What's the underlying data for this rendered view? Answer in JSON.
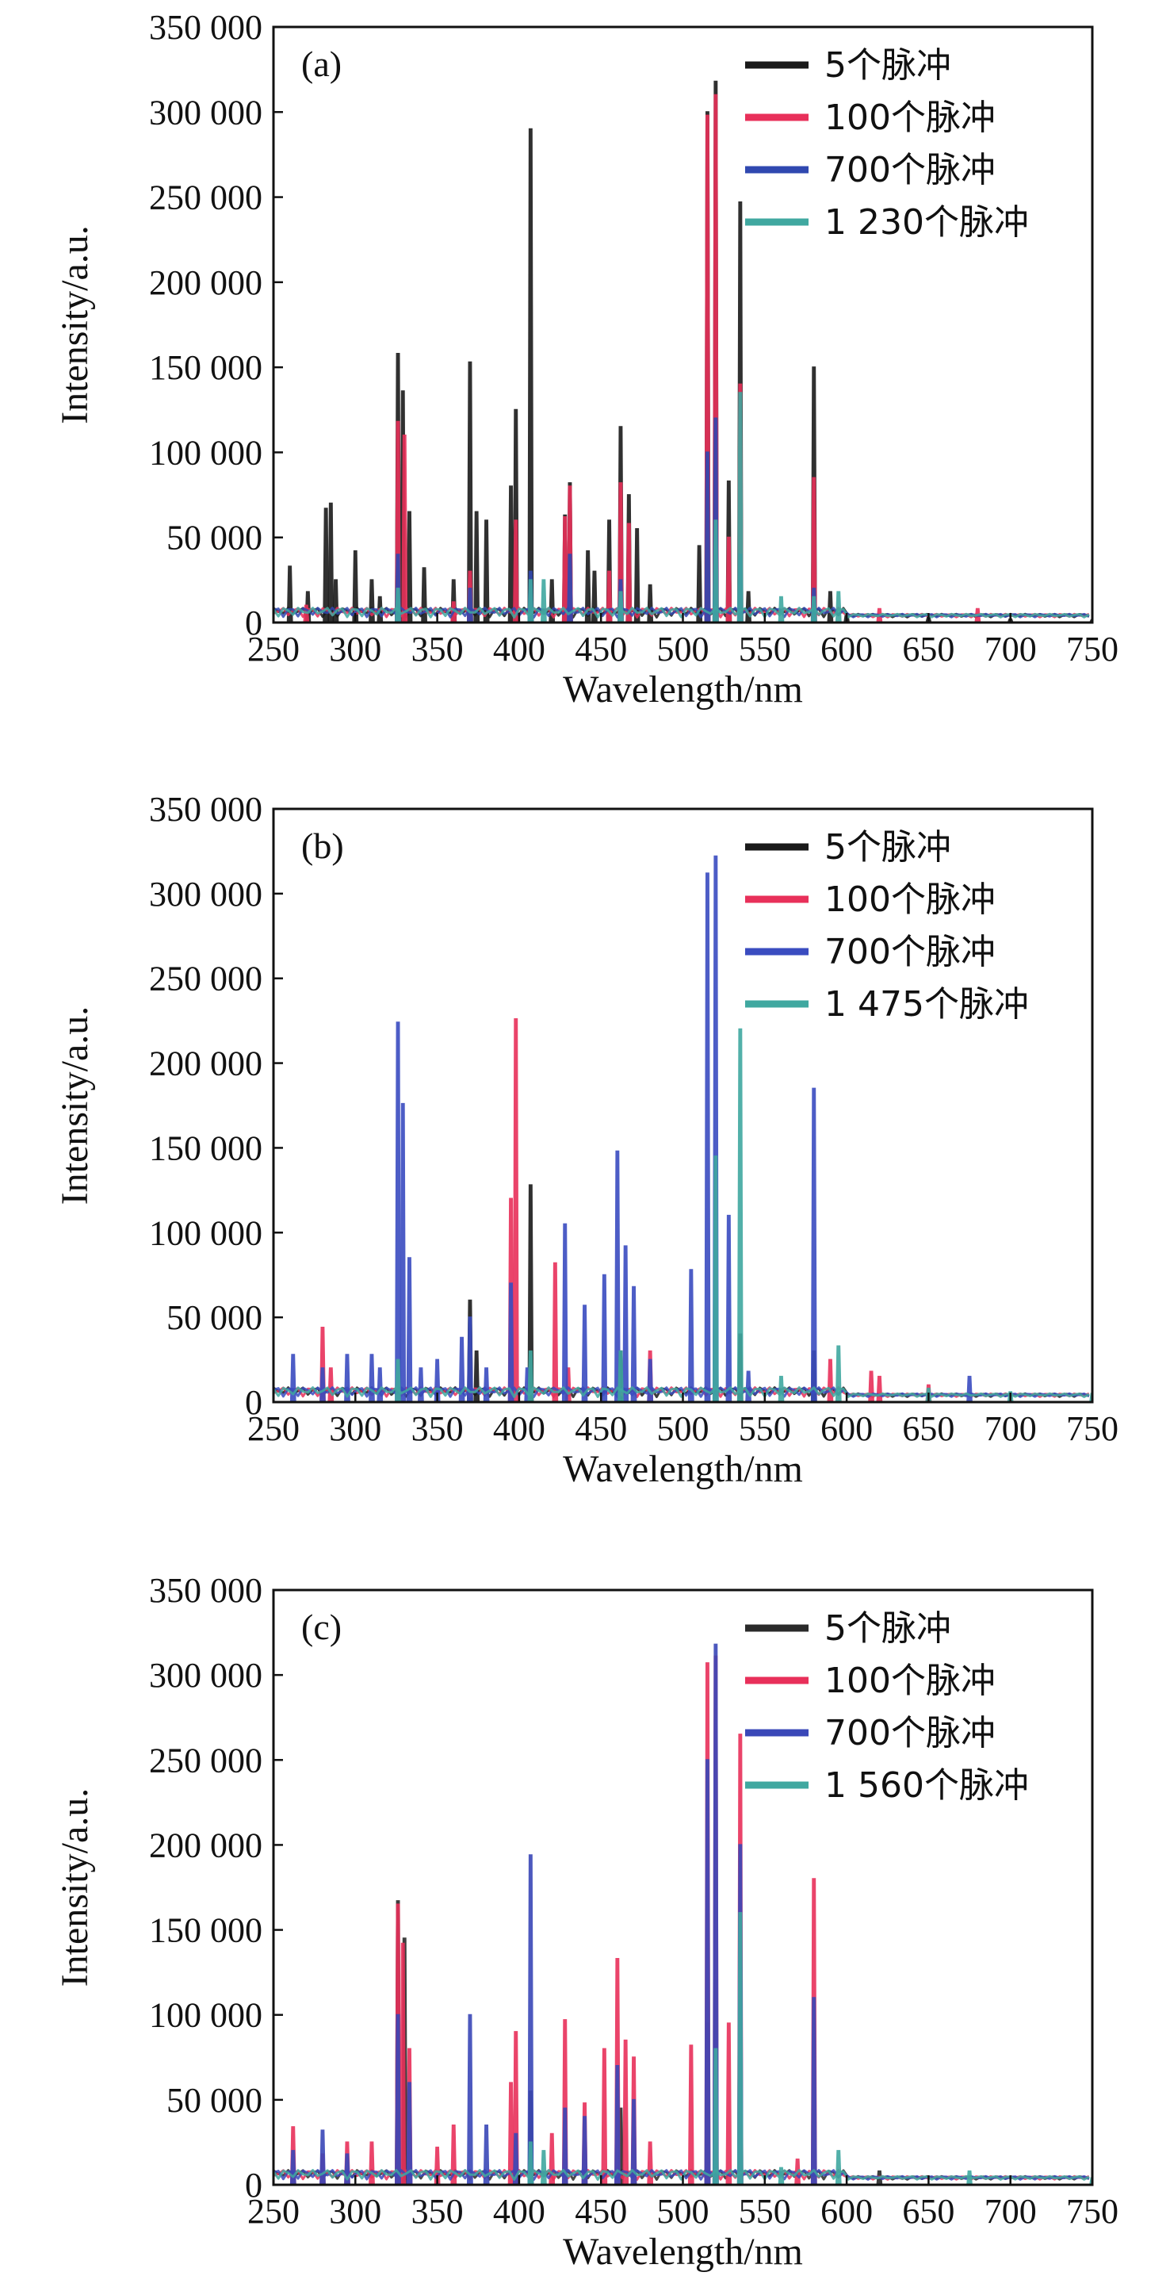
{
  "chart_data": [
    {
      "type": "line",
      "panel_label": "(a)",
      "xlabel": "Wavelength/nm",
      "ylabel": "Intensity/a.u.",
      "xlim": [
        250,
        750
      ],
      "ylim": [
        0,
        350000
      ],
      "xticks": [
        "250",
        "300",
        "350",
        "400",
        "450",
        "500",
        "550",
        "600",
        "650",
        "700",
        "750"
      ],
      "yticks": [
        "0",
        "50 000",
        "100 000",
        "150 000",
        "200 000",
        "250 000",
        "300 000",
        "350 000"
      ],
      "grid": false,
      "legend_position": "top-right",
      "series": [
        {
          "name": "5个脉冲",
          "color": "#1a1a1a",
          "style": "solid",
          "peaks": [
            [
              260,
              33000
            ],
            [
              271,
              18000
            ],
            [
              282,
              67000
            ],
            [
              285,
              70000
            ],
            [
              288,
              25000
            ],
            [
              300,
              42000
            ],
            [
              310,
              25000
            ],
            [
              315,
              15000
            ],
            [
              326,
              158000
            ],
            [
              329,
              136000
            ],
            [
              333,
              65000
            ],
            [
              342,
              32000
            ],
            [
              360,
              25000
            ],
            [
              370,
              153000
            ],
            [
              374,
              65000
            ],
            [
              380,
              60000
            ],
            [
              395,
              80000
            ],
            [
              398,
              125000
            ],
            [
              407,
              290000
            ],
            [
              420,
              25000
            ],
            [
              428,
              63000
            ],
            [
              431,
              82000
            ],
            [
              442,
              42000
            ],
            [
              446,
              30000
            ],
            [
              455,
              60000
            ],
            [
              462,
              115000
            ],
            [
              467,
              75000
            ],
            [
              472,
              55000
            ],
            [
              480,
              22000
            ],
            [
              510,
              45000
            ],
            [
              515,
              300000
            ],
            [
              520,
              318000
            ],
            [
              528,
              83000
            ],
            [
              535,
              247000
            ],
            [
              540,
              18000
            ],
            [
              580,
              150000
            ],
            [
              590,
              18000
            ],
            [
              600,
              5000
            ],
            [
              650,
              3000
            ],
            [
              700,
              2000
            ],
            [
              750,
              1500
            ]
          ]
        },
        {
          "name": "100个脉冲",
          "color": "#e8305a",
          "style": "solid",
          "peaks": [
            [
              270,
              10000
            ],
            [
              326,
              118000
            ],
            [
              330,
              110000
            ],
            [
              360,
              12000
            ],
            [
              370,
              30000
            ],
            [
              398,
              60000
            ],
            [
              428,
              62000
            ],
            [
              431,
              80000
            ],
            [
              455,
              30000
            ],
            [
              462,
              82000
            ],
            [
              467,
              58000
            ],
            [
              515,
              298000
            ],
            [
              520,
              310000
            ],
            [
              528,
              50000
            ],
            [
              535,
              140000
            ],
            [
              580,
              85000
            ],
            [
              620,
              8000
            ],
            [
              680,
              8000
            ]
          ]
        },
        {
          "name": "700个脉冲",
          "color": "#3048b0",
          "style": "solid",
          "peaks": [
            [
              326,
              40000
            ],
            [
              370,
              20000
            ],
            [
              407,
              30000
            ],
            [
              431,
              40000
            ],
            [
              462,
              25000
            ],
            [
              515,
              100000
            ],
            [
              520,
              120000
            ],
            [
              535,
              40000
            ],
            [
              580,
              20000
            ]
          ]
        },
        {
          "name": "1 230个脉冲",
          "color": "#40a8a0",
          "style": "solid",
          "peaks": [
            [
              326,
              20000
            ],
            [
              407,
              25000
            ],
            [
              415,
              25000
            ],
            [
              462,
              18000
            ],
            [
              520,
              60000
            ],
            [
              535,
              135000
            ],
            [
              560,
              15000
            ],
            [
              580,
              15000
            ],
            [
              595,
              18000
            ]
          ]
        }
      ]
    },
    {
      "type": "line",
      "panel_label": "(b)",
      "xlabel": "Wavelength/nm",
      "ylabel": "Intensity/a.u.",
      "xlim": [
        250,
        750
      ],
      "ylim": [
        0,
        350000
      ],
      "xticks": [
        "250",
        "300",
        "350",
        "400",
        "450",
        "500",
        "550",
        "600",
        "650",
        "700",
        "750"
      ],
      "yticks": [
        "0",
        "50 000",
        "100 000",
        "150 000",
        "200 000",
        "250 000",
        "300 000",
        "350 000"
      ],
      "grid": false,
      "legend_position": "top-right",
      "series": [
        {
          "name": "5个脉冲",
          "color": "#1a1a1a",
          "style": "solid",
          "peaks": [
            [
              370,
              60000
            ],
            [
              374,
              30000
            ],
            [
              407,
              128000
            ],
            [
              462,
              30000
            ],
            [
              535,
              40000
            ],
            [
              580,
              30000
            ]
          ]
        },
        {
          "name": "100个脉冲",
          "color": "#e8305a",
          "style": "solid",
          "peaks": [
            [
              280,
              44000
            ],
            [
              285,
              20000
            ],
            [
              395,
              120000
            ],
            [
              398,
              226000
            ],
            [
              422,
              82000
            ],
            [
              430,
              20000
            ],
            [
              480,
              30000
            ],
            [
              590,
              25000
            ],
            [
              615,
              18000
            ],
            [
              620,
              15000
            ],
            [
              650,
              10000
            ]
          ]
        },
        {
          "name": "700个脉冲",
          "color": "#3a4cc0",
          "style": "solid",
          "peaks": [
            [
              262,
              28000
            ],
            [
              280,
              20000
            ],
            [
              295,
              28000
            ],
            [
              310,
              28000
            ],
            [
              315,
              20000
            ],
            [
              326,
              224000
            ],
            [
              329,
              176000
            ],
            [
              333,
              85000
            ],
            [
              340,
              20000
            ],
            [
              350,
              25000
            ],
            [
              365,
              38000
            ],
            [
              370,
              50000
            ],
            [
              380,
              20000
            ],
            [
              395,
              70000
            ],
            [
              405,
              20000
            ],
            [
              428,
              105000
            ],
            [
              440,
              57000
            ],
            [
              452,
              75000
            ],
            [
              460,
              148000
            ],
            [
              465,
              92000
            ],
            [
              470,
              68000
            ],
            [
              480,
              25000
            ],
            [
              505,
              78000
            ],
            [
              515,
              312000
            ],
            [
              520,
              322000
            ],
            [
              528,
              110000
            ],
            [
              540,
              18000
            ],
            [
              580,
              185000
            ],
            [
              675,
              15000
            ]
          ]
        },
        {
          "name": "1 475个脉冲",
          "color": "#40a8a0",
          "style": "solid",
          "peaks": [
            [
              326,
              25000
            ],
            [
              407,
              30000
            ],
            [
              462,
              30000
            ],
            [
              520,
              145000
            ],
            [
              535,
              220000
            ],
            [
              560,
              15000
            ],
            [
              595,
              33000
            ],
            [
              650,
              8000
            ],
            [
              700,
              6000
            ],
            [
              750,
              5000
            ]
          ]
        }
      ]
    },
    {
      "type": "line",
      "panel_label": "(c)",
      "xlabel": "Wavelength/nm",
      "ylabel": "Intensity/a.u.",
      "xlim": [
        250,
        750
      ],
      "ylim": [
        0,
        350000
      ],
      "xticks": [
        "250",
        "300",
        "350",
        "400",
        "450",
        "500",
        "550",
        "600",
        "650",
        "700",
        "750"
      ],
      "yticks": [
        "0",
        "50 000",
        "100 000",
        "150 000",
        "200 000",
        "250 000",
        "300 000",
        "350 000"
      ],
      "grid": false,
      "legend_position": "top-right",
      "series": [
        {
          "name": "5个脉冲",
          "color": "#2a2a2a",
          "style": "solid",
          "peaks": [
            [
              326,
              167000
            ],
            [
              330,
              145000
            ],
            [
              407,
              55000
            ],
            [
              462,
              45000
            ],
            [
              515,
              95000
            ],
            [
              520,
              120000
            ],
            [
              535,
              80000
            ],
            [
              620,
              8000
            ]
          ]
        },
        {
          "name": "100个脉冲",
          "color": "#e8305a",
          "style": "solid",
          "peaks": [
            [
              262,
              34000
            ],
            [
              280,
              18000
            ],
            [
              295,
              25000
            ],
            [
              310,
              25000
            ],
            [
              326,
              165000
            ],
            [
              329,
              142000
            ],
            [
              333,
              80000
            ],
            [
              350,
              22000
            ],
            [
              360,
              35000
            ],
            [
              395,
              60000
            ],
            [
              398,
              90000
            ],
            [
              420,
              30000
            ],
            [
              428,
              97000
            ],
            [
              440,
              48000
            ],
            [
              452,
              80000
            ],
            [
              460,
              133000
            ],
            [
              465,
              85000
            ],
            [
              470,
              75000
            ],
            [
              480,
              25000
            ],
            [
              505,
              82000
            ],
            [
              515,
              307000
            ],
            [
              520,
              311000
            ],
            [
              528,
              95000
            ],
            [
              535,
              265000
            ],
            [
              570,
              15000
            ],
            [
              580,
              180000
            ]
          ]
        },
        {
          "name": "700个脉冲",
          "color": "#3a48b8",
          "style": "solid",
          "peaks": [
            [
              262,
              20000
            ],
            [
              280,
              32000
            ],
            [
              295,
              18000
            ],
            [
              326,
              100000
            ],
            [
              333,
              60000
            ],
            [
              370,
              100000
            ],
            [
              380,
              35000
            ],
            [
              398,
              30000
            ],
            [
              407,
              194000
            ],
            [
              428,
              45000
            ],
            [
              440,
              40000
            ],
            [
              460,
              70000
            ],
            [
              470,
              50000
            ],
            [
              515,
              250000
            ],
            [
              520,
              318000
            ],
            [
              535,
              200000
            ],
            [
              580,
              110000
            ]
          ]
        },
        {
          "name": "1 560个脉冲",
          "color": "#40a8a0",
          "style": "solid",
          "peaks": [
            [
              407,
              25000
            ],
            [
              415,
              20000
            ],
            [
              520,
              80000
            ],
            [
              535,
              160000
            ],
            [
              560,
              10000
            ],
            [
              595,
              20000
            ],
            [
              675,
              8000
            ],
            [
              750,
              4000
            ]
          ]
        }
      ]
    }
  ]
}
